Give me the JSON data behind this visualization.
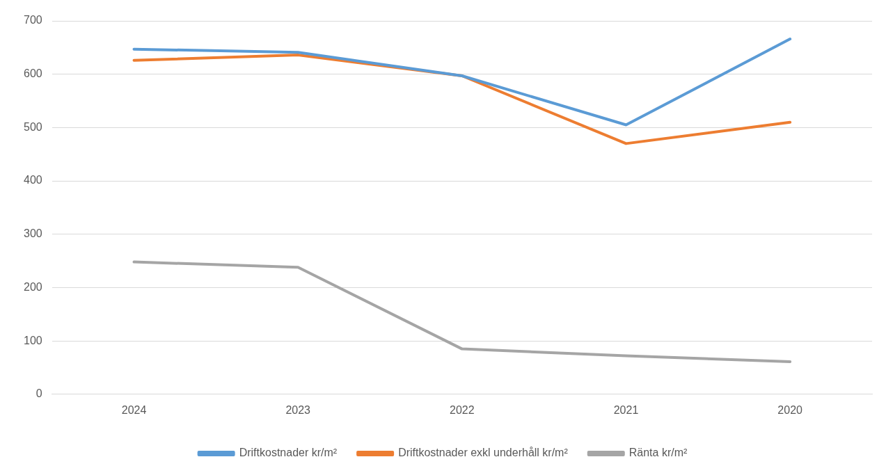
{
  "chart_data": {
    "type": "line",
    "categories": [
      "2024",
      "2023",
      "2022",
      "2021",
      "2020"
    ],
    "series": [
      {
        "name": "Driftkostnader kr/m²",
        "color": "#5b9bd5",
        "values": [
          647,
          641,
          597,
          505,
          666
        ]
      },
      {
        "name": "Driftkostnader exkl underhåll kr/m²",
        "color": "#ed7d31",
        "values": [
          626,
          636,
          597,
          470,
          510
        ]
      },
      {
        "name": "Ränta kr/m²",
        "color": "#a5a5a5",
        "values": [
          248,
          238,
          85,
          72,
          61
        ]
      }
    ],
    "ylim": [
      0,
      700
    ],
    "yticks": [
      0,
      100,
      200,
      300,
      400,
      500,
      600,
      700
    ],
    "grid": "y",
    "legend": "bottom",
    "marker": "none",
    "line_style": "solid"
  }
}
